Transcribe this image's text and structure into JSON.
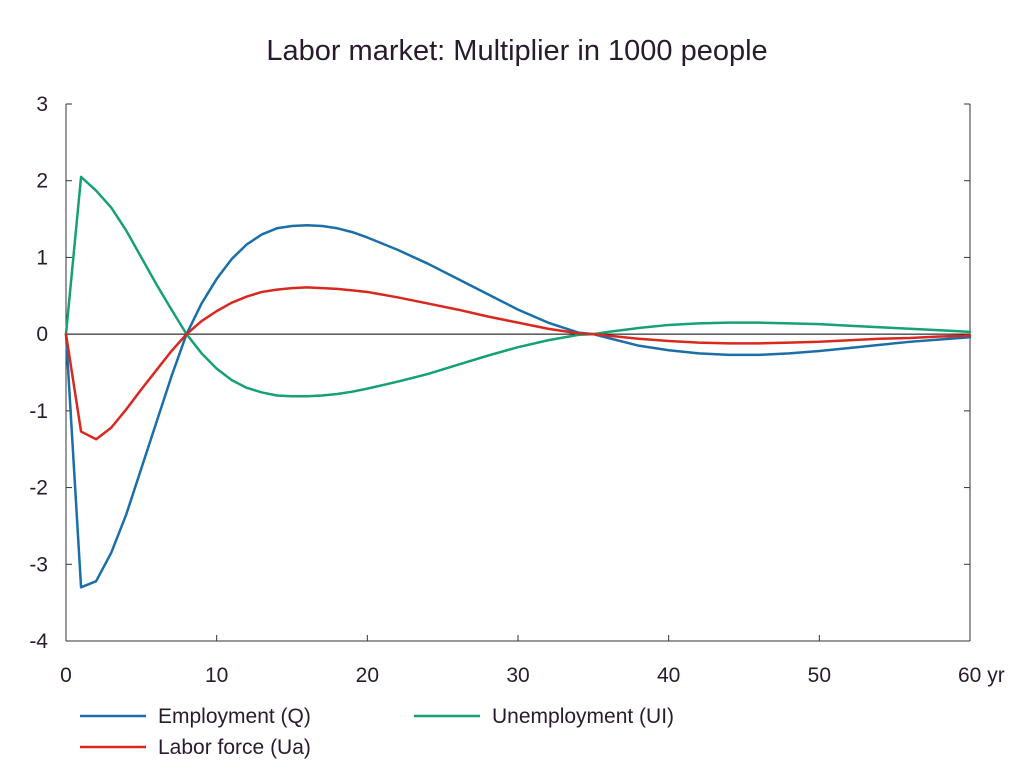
{
  "chart_data": {
    "type": "line",
    "title": "Labor market: Multiplier in 1000 people",
    "xlabel": "",
    "ylabel": "",
    "xlim": [
      0,
      60
    ],
    "ylim": [
      -4,
      3
    ],
    "x_ticks": [
      0,
      10,
      20,
      30,
      40,
      50,
      60
    ],
    "x_tick_labels": [
      "0",
      "10",
      "20",
      "30",
      "40",
      "50",
      "60 yr"
    ],
    "y_ticks": [
      3,
      2,
      1,
      0,
      -1,
      -2,
      -3,
      -4
    ],
    "y_tick_labels": [
      "3",
      "2",
      "1",
      "0",
      "-1",
      "-2",
      "-3",
      "-4"
    ],
    "grid": false,
    "zero_line": true,
    "legend_position": "bottom",
    "series": [
      {
        "name": "Employment (Q)",
        "color": "#1a6fa8",
        "x": [
          0,
          1,
          2,
          3,
          4,
          5,
          6,
          7,
          8,
          9,
          10,
          11,
          12,
          13,
          14,
          15,
          16,
          17,
          18,
          19,
          20,
          22,
          24,
          26,
          28,
          30,
          32,
          34,
          35,
          36,
          38,
          40,
          42,
          44,
          45,
          46,
          48,
          50,
          52,
          54,
          56,
          58,
          60
        ],
        "y": [
          0,
          -3.3,
          -3.22,
          -2.85,
          -2.35,
          -1.75,
          -1.15,
          -0.55,
          0,
          0.4,
          0.72,
          0.98,
          1.17,
          1.3,
          1.38,
          1.41,
          1.42,
          1.41,
          1.38,
          1.33,
          1.26,
          1.1,
          0.92,
          0.72,
          0.52,
          0.32,
          0.15,
          0.02,
          0,
          -0.05,
          -0.15,
          -0.21,
          -0.25,
          -0.27,
          -0.27,
          -0.27,
          -0.25,
          -0.22,
          -0.18,
          -0.14,
          -0.1,
          -0.07,
          -0.04
        ]
      },
      {
        "name": "Unemployment (UI)",
        "color": "#16a075",
        "x": [
          0,
          1,
          2,
          3,
          4,
          5,
          6,
          7,
          8,
          9,
          10,
          11,
          12,
          13,
          14,
          15,
          16,
          17,
          18,
          19,
          20,
          22,
          24,
          26,
          28,
          30,
          32,
          34,
          35,
          36,
          38,
          40,
          42,
          44,
          45,
          46,
          48,
          50,
          52,
          54,
          56,
          58,
          60
        ],
        "y": [
          0,
          2.05,
          1.87,
          1.65,
          1.35,
          1.0,
          0.65,
          0.32,
          0,
          -0.25,
          -0.45,
          -0.6,
          -0.7,
          -0.76,
          -0.8,
          -0.81,
          -0.81,
          -0.8,
          -0.78,
          -0.75,
          -0.71,
          -0.62,
          -0.52,
          -0.4,
          -0.28,
          -0.17,
          -0.08,
          -0.01,
          0,
          0.03,
          0.08,
          0.12,
          0.14,
          0.15,
          0.15,
          0.15,
          0.14,
          0.13,
          0.11,
          0.09,
          0.07,
          0.05,
          0.03
        ]
      },
      {
        "name": "Labor force (Ua)",
        "color": "#d9281e",
        "x": [
          0,
          1,
          2,
          3,
          4,
          5,
          6,
          7,
          8,
          9,
          10,
          11,
          12,
          13,
          14,
          15,
          16,
          17,
          18,
          19,
          20,
          22,
          24,
          26,
          28,
          30,
          32,
          34,
          35,
          36,
          38,
          40,
          42,
          44,
          45,
          46,
          48,
          50,
          52,
          54,
          56,
          58,
          60
        ],
        "y": [
          0,
          -1.27,
          -1.37,
          -1.22,
          -0.98,
          -0.72,
          -0.47,
          -0.22,
          0,
          0.17,
          0.3,
          0.41,
          0.49,
          0.55,
          0.58,
          0.6,
          0.61,
          0.6,
          0.59,
          0.57,
          0.55,
          0.48,
          0.4,
          0.32,
          0.23,
          0.15,
          0.07,
          0.01,
          0,
          -0.02,
          -0.06,
          -0.09,
          -0.11,
          -0.12,
          -0.12,
          -0.12,
          -0.11,
          -0.1,
          -0.08,
          -0.06,
          -0.05,
          -0.03,
          -0.02
        ]
      }
    ],
    "legend_order": [
      0,
      1,
      2
    ]
  }
}
